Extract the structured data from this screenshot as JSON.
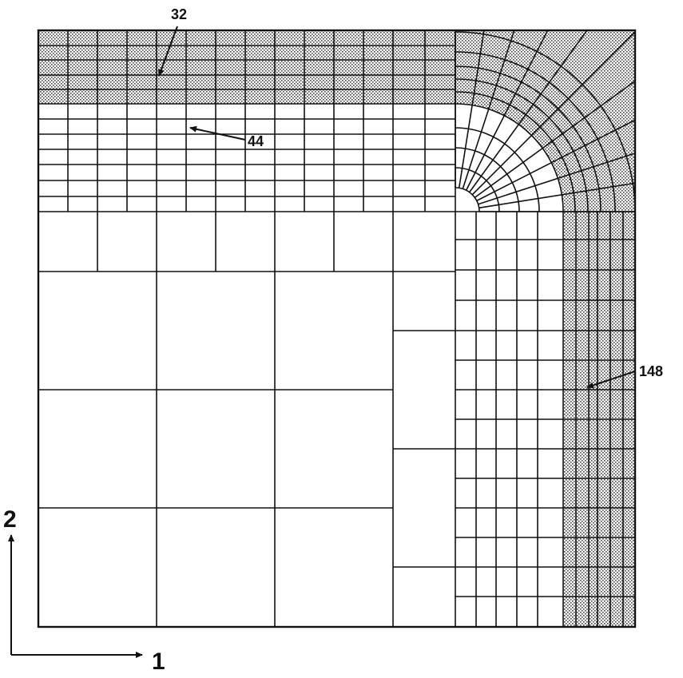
{
  "figure": {
    "callouts": [
      {
        "id": "ref-32",
        "text": "32"
      },
      {
        "id": "ref-44",
        "text": "44"
      },
      {
        "id": "ref-148",
        "text": "148"
      }
    ],
    "axes": {
      "horizontal": "1",
      "vertical": "2"
    },
    "colors": {
      "line": "#111111",
      "shaded_fill": "stippled-gray",
      "background": "#ffffff"
    }
  }
}
